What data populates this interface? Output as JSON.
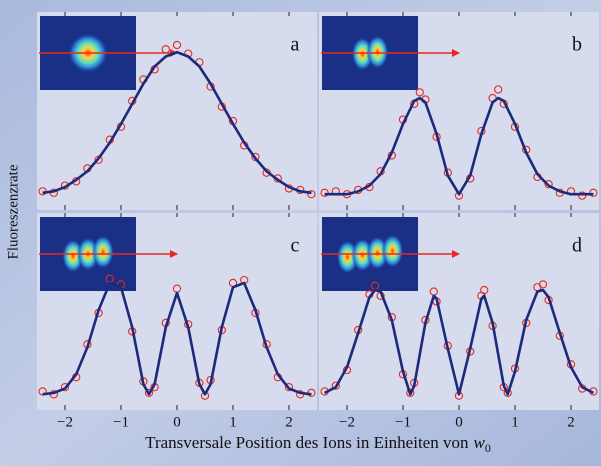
{
  "figure": {
    "ylabel": "Fluoreszenzrate",
    "xlabel": {
      "text": "Transversale Position des Ions in Einheiten von",
      "symbol": "w",
      "subscript": "0"
    }
  },
  "chart_data": [
    {
      "type": "line",
      "label": "a",
      "xlim": [
        -2.5,
        2.5
      ],
      "ylim": [
        -0.08,
        1.3
      ],
      "xticks": [
        {
          "value": -2,
          "label": "−2"
        },
        {
          "value": -1,
          "label": "−1"
        },
        0,
        1,
        2
      ],
      "xtick_labels": false,
      "x": [
        -2.4,
        -2.2,
        -2,
        -1.8,
        -1.6,
        -1.4,
        -1.2,
        -1,
        -0.8,
        -0.6,
        -0.4,
        -0.2,
        0,
        0.2,
        0.4,
        0.6,
        0.8,
        1,
        1.2,
        1.4,
        1.6,
        1.8,
        2,
        2.2,
        2.4
      ],
      "series": [
        {
          "mode": "markers",
          "color": "#e8281e",
          "values": [
            0.05,
            0.04,
            0.09,
            0.12,
            0.21,
            0.27,
            0.41,
            0.5,
            0.68,
            0.83,
            0.9,
            1.04,
            1.07,
            1.01,
            0.95,
            0.78,
            0.64,
            0.54,
            0.37,
            0.29,
            0.18,
            0.14,
            0.07,
            0.06,
            0.03
          ]
        },
        {
          "mode": "lines",
          "color": "#1c2a7a",
          "values": [
            0.04,
            0.05,
            0.08,
            0.13,
            0.19,
            0.28,
            0.39,
            0.52,
            0.66,
            0.8,
            0.92,
            0.99,
            1.02,
            0.99,
            0.92,
            0.8,
            0.66,
            0.52,
            0.39,
            0.28,
            0.19,
            0.13,
            0.08,
            0.05,
            0.04
          ]
        }
      ]
    },
    {
      "type": "line",
      "label": "b",
      "xlim": [
        -2.5,
        2.5
      ],
      "ylim": [
        -0.08,
        1.3
      ],
      "xticks": [
        {
          "value": -2,
          "label": "−2"
        },
        {
          "value": -1,
          "label": "−1"
        },
        0,
        1,
        2
      ],
      "xtick_labels": false,
      "x": [
        -2.4,
        -2.2,
        -2,
        -1.8,
        -1.6,
        -1.4,
        -1.2,
        -1,
        -0.8,
        -0.7,
        -0.6,
        -0.4,
        -0.2,
        0,
        0.2,
        0.4,
        0.6,
        0.7,
        0.8,
        1,
        1.2,
        1.4,
        1.6,
        1.8,
        2,
        2.2,
        2.4
      ],
      "series": [
        {
          "mode": "markers",
          "color": "#e8281e",
          "values": [
            0.04,
            0.05,
            0.03,
            0.06,
            0.08,
            0.19,
            0.3,
            0.55,
            0.66,
            0.74,
            0.69,
            0.43,
            0.18,
            0.02,
            0.14,
            0.47,
            0.7,
            0.76,
            0.66,
            0.5,
            0.34,
            0.15,
            0.1,
            0.04,
            0.05,
            0.02,
            0.04
          ]
        },
        {
          "mode": "lines",
          "color": "#1c2a7a",
          "values": [
            0.03,
            0.03,
            0.03,
            0.05,
            0.09,
            0.17,
            0.32,
            0.52,
            0.68,
            0.7,
            0.67,
            0.45,
            0.16,
            0.03,
            0.16,
            0.45,
            0.67,
            0.7,
            0.68,
            0.52,
            0.32,
            0.17,
            0.09,
            0.05,
            0.03,
            0.03,
            0.03
          ]
        }
      ]
    },
    {
      "type": "line",
      "label": "c",
      "xlim": [
        -2.5,
        2.5
      ],
      "ylim": [
        -0.08,
        1.3
      ],
      "xticks": [
        {
          "value": -2,
          "label": "−2"
        },
        {
          "value": -1,
          "label": "−1"
        },
        0,
        1,
        2
      ],
      "xtick_labels": true,
      "x": [
        -2.4,
        -2.2,
        -2,
        -1.8,
        -1.6,
        -1.4,
        -1.2,
        -1,
        -0.8,
        -0.6,
        -0.5,
        -0.4,
        -0.2,
        0,
        0.2,
        0.4,
        0.5,
        0.6,
        0.8,
        1,
        1.2,
        1.4,
        1.6,
        1.8,
        2,
        2.2,
        2.4
      ],
      "series": [
        {
          "mode": "markers",
          "color": "#e8281e",
          "values": [
            0.05,
            0.03,
            0.08,
            0.15,
            0.38,
            0.6,
            0.84,
            0.8,
            0.47,
            0.12,
            0.04,
            0.08,
            0.53,
            0.77,
            0.52,
            0.11,
            0.02,
            0.13,
            0.48,
            0.81,
            0.83,
            0.6,
            0.38,
            0.15,
            0.08,
            0.03,
            0.04
          ]
        },
        {
          "mode": "lines",
          "color": "#1c2a7a",
          "values": [
            0.03,
            0.04,
            0.07,
            0.17,
            0.36,
            0.62,
            0.81,
            0.78,
            0.5,
            0.1,
            0.03,
            0.1,
            0.5,
            0.74,
            0.5,
            0.1,
            0.03,
            0.1,
            0.5,
            0.78,
            0.81,
            0.62,
            0.36,
            0.17,
            0.07,
            0.04,
            0.03
          ]
        }
      ]
    },
    {
      "type": "line",
      "label": "d",
      "xlim": [
        -2.5,
        2.5
      ],
      "ylim": [
        -0.08,
        1.3
      ],
      "xticks": [
        {
          "value": -2,
          "label": "−2"
        },
        {
          "value": -1,
          "label": "−1"
        },
        0,
        1,
        2
      ],
      "xtick_labels": true,
      "x": [
        -2.4,
        -2.2,
        -2,
        -1.8,
        -1.6,
        -1.5,
        -1.4,
        -1.2,
        -1,
        -0.87,
        -0.8,
        -0.6,
        -0.45,
        -0.4,
        -0.2,
        0,
        0.2,
        0.4,
        0.45,
        0.6,
        0.8,
        0.87,
        1,
        1.2,
        1.4,
        1.5,
        1.6,
        1.8,
        2,
        2.2,
        2.4
      ],
      "series": [
        {
          "mode": "markers",
          "color": "#e8281e",
          "values": [
            0.05,
            0.09,
            0.2,
            0.48,
            0.73,
            0.79,
            0.72,
            0.57,
            0.17,
            0.04,
            0.11,
            0.55,
            0.75,
            0.68,
            0.37,
            0.02,
            0.33,
            0.72,
            0.76,
            0.51,
            0.08,
            0.04,
            0.21,
            0.53,
            0.78,
            0.8,
            0.69,
            0.44,
            0.24,
            0.07,
            0.05
          ]
        },
        {
          "mode": "lines",
          "color": "#1c2a7a",
          "values": [
            0.04,
            0.08,
            0.22,
            0.46,
            0.71,
            0.76,
            0.75,
            0.55,
            0.19,
            0.03,
            0.09,
            0.53,
            0.72,
            0.7,
            0.35,
            0.03,
            0.35,
            0.7,
            0.72,
            0.53,
            0.09,
            0.03,
            0.19,
            0.55,
            0.75,
            0.76,
            0.71,
            0.46,
            0.22,
            0.08,
            0.04
          ]
        }
      ]
    }
  ]
}
